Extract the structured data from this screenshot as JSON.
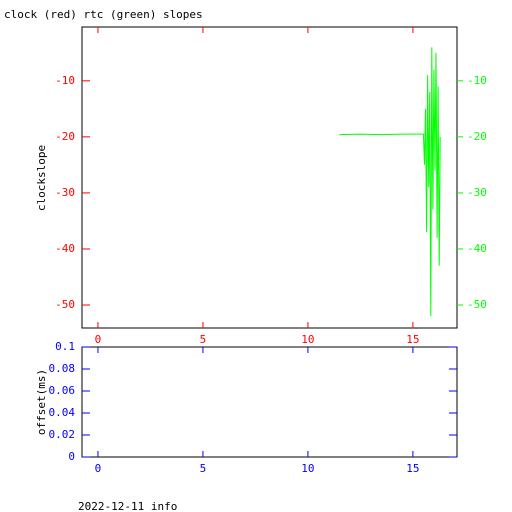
{
  "chart_data": [
    {
      "type": "line",
      "title": "clock (red) rtc (green) slopes",
      "ylabel": "clockslope",
      "axis_color": "#ff0000",
      "y2_color": "#00ff00",
      "xlim": [
        -0.76,
        17.1
      ],
      "xticks": [
        0,
        5,
        10,
        15
      ],
      "ylim": [
        -54.1,
        -0.4
      ],
      "yticks": [
        -10,
        -20,
        -30,
        -40,
        -50
      ],
      "y2lim": [
        -54.1,
        -0.4
      ],
      "y2ticks": [
        -10,
        -20,
        -30,
        -40,
        -50
      ],
      "series": [
        {
          "name": "rtc",
          "color": "#00ff00",
          "axis": "y2",
          "x": [
            11.5,
            12.5,
            13.5,
            14.5,
            15.5,
            15.55,
            15.6,
            15.65,
            15.7,
            15.75,
            15.8,
            15.85,
            15.9,
            15.95,
            16.0,
            16.05,
            16.1,
            16.15,
            16.2,
            16.25,
            16.3
          ],
          "values": [
            -19.6,
            -19.5,
            -19.6,
            -19.5,
            -19.5,
            -25,
            -15,
            -37,
            -9,
            -29,
            -12,
            -52,
            -4,
            -33,
            -8,
            -26,
            -5,
            -38,
            -11,
            -43,
            -20
          ]
        }
      ]
    },
    {
      "type": "line",
      "ylabel": "offset(ms)",
      "axis_color": "#0000ff",
      "xlim": [
        -0.76,
        17.1
      ],
      "xticks": [
        0,
        5,
        10,
        15
      ],
      "ylim": [
        0,
        0.1
      ],
      "yticks": [
        0,
        0.02,
        0.04,
        0.06,
        0.08,
        0.1
      ],
      "series": [],
      "annotation": "2022-12-11 info"
    }
  ]
}
